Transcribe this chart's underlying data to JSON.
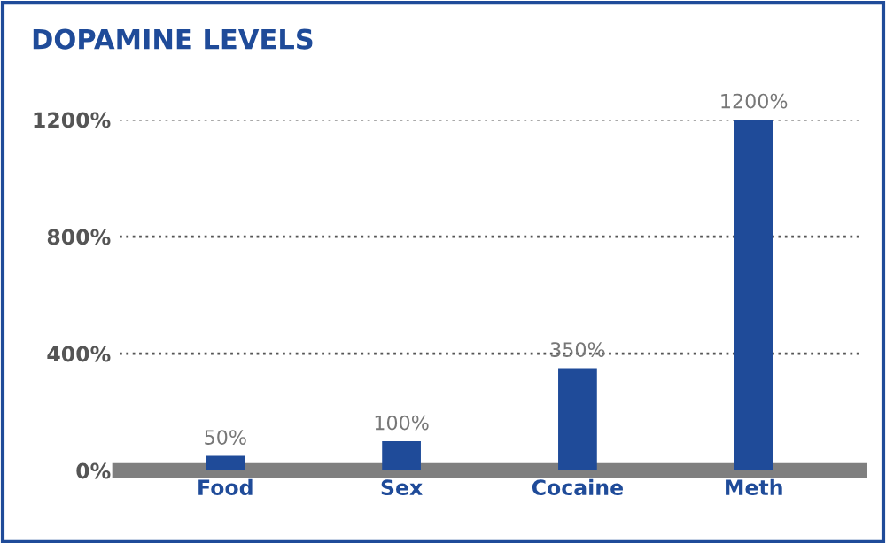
{
  "chart_data": {
    "type": "bar",
    "title": "DOPAMINE LEVELS",
    "categories": [
      "Food",
      "Sex",
      "Cocaine",
      "Meth"
    ],
    "values": [
      50,
      100,
      350,
      1200
    ],
    "color": "#1f4b99",
    "value_labels": [
      "50%",
      "100%",
      "350%",
      "1200%"
    ],
    "ylim": [
      0,
      1200
    ],
    "yticks": [
      {
        "value": 0,
        "label": "0%"
      },
      {
        "value": 400,
        "label": "400%"
      },
      {
        "value": 800,
        "label": "800%"
      },
      {
        "value": 1200,
        "label": "1200%"
      }
    ],
    "grid": "y",
    "line_style": "dotted"
  }
}
